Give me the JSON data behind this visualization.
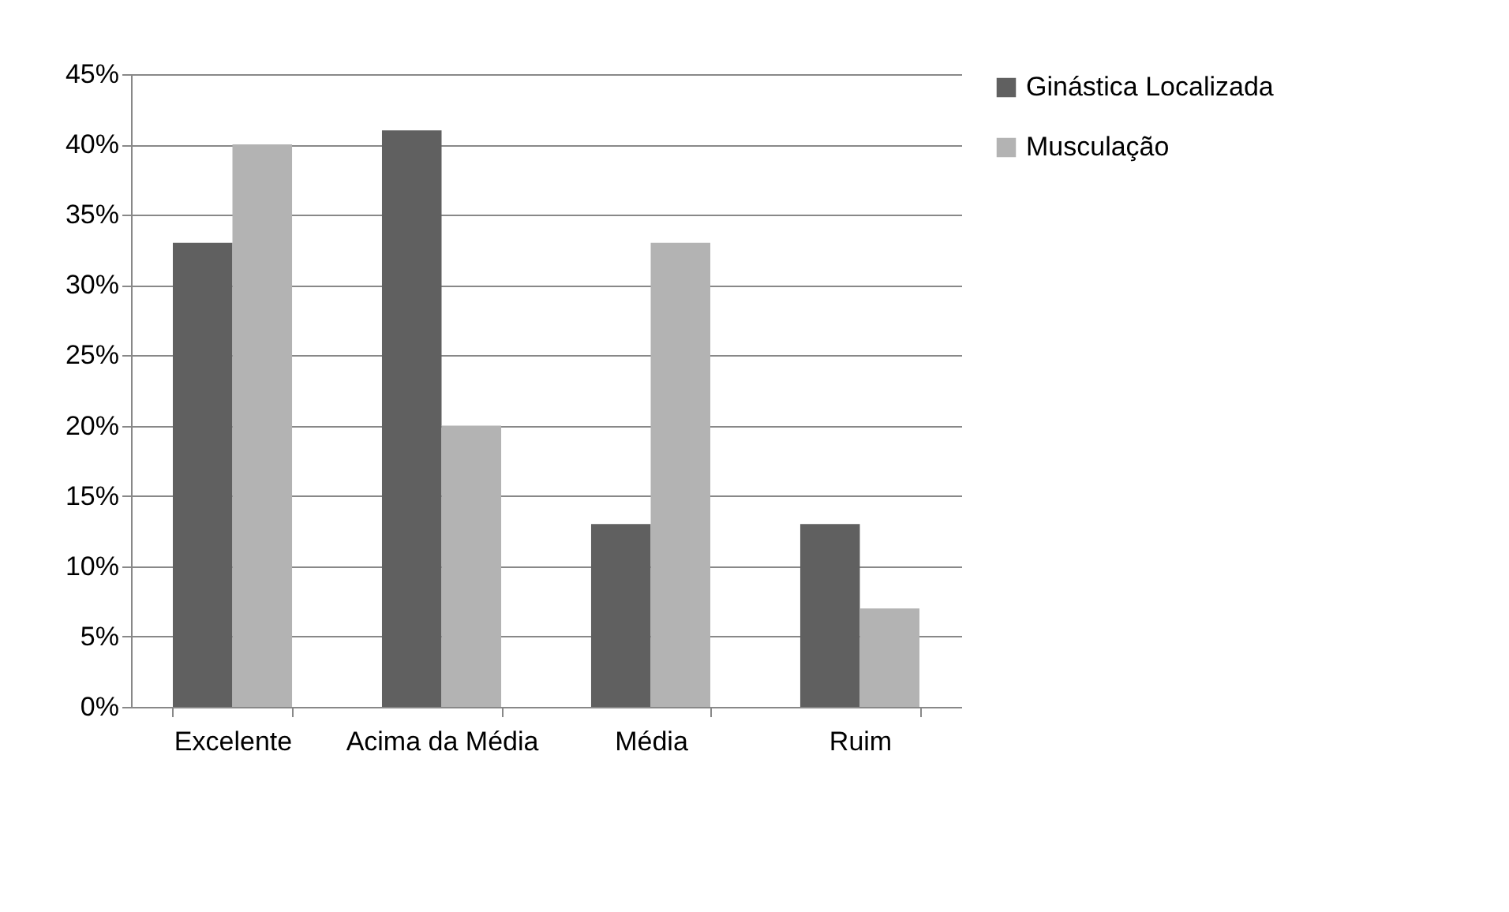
{
  "chart_data": {
    "type": "bar",
    "categories": [
      "Excelente",
      "Acima da Média",
      "Média",
      "Ruim"
    ],
    "series": [
      {
        "name": "Ginástica Localizada",
        "color": "#606060",
        "values": [
          33,
          41,
          13,
          13
        ]
      },
      {
        "name": "Musculação",
        "color": "#b3b3b3",
        "values": [
          40,
          20,
          33,
          7
        ]
      }
    ],
    "ylim": [
      0,
      45
    ],
    "yticks": [
      {
        "value": 0,
        "label": "0%"
      },
      {
        "value": 5,
        "label": "5%"
      },
      {
        "value": 10,
        "label": "10%"
      },
      {
        "value": 15,
        "label": "15%"
      },
      {
        "value": 20,
        "label": "20%"
      },
      {
        "value": 25,
        "label": "25%"
      },
      {
        "value": 30,
        "label": "30%"
      },
      {
        "value": 35,
        "label": "35%"
      },
      {
        "value": 40,
        "label": "40%"
      },
      {
        "value": 45,
        "label": "45%"
      }
    ],
    "grid": "y",
    "legend": "right"
  }
}
